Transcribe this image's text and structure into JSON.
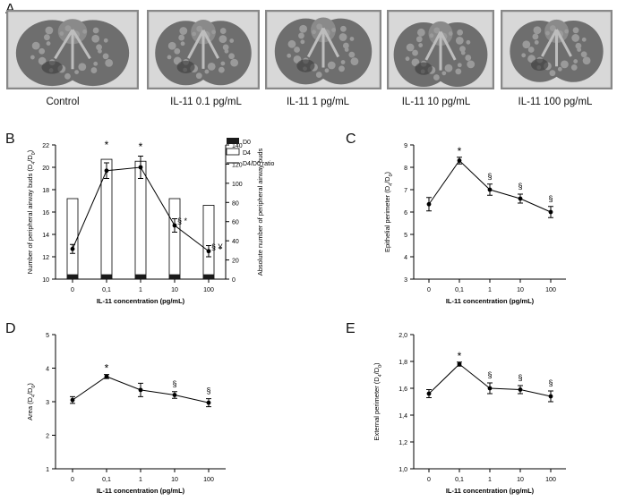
{
  "figure_labels": [
    "A",
    "B",
    "C",
    "D",
    "E"
  ],
  "photos": {
    "captions": [
      "Control",
      "IL-11 0.1 pg/mL",
      "IL-11 1 pg/mL",
      "IL-11 10 pg/mL",
      "IL-11 100 pg/mL"
    ]
  },
  "colors": {
    "axis": "#000000",
    "bar_fill": "#ffffff",
    "d0_fill": "#1a1a1a",
    "photo_frame": "#888888"
  },
  "chart_data": [
    {
      "id": "B",
      "type": "bar",
      "categories": [
        "0",
        "0,1",
        "1",
        "10",
        "100"
      ],
      "xlabel": "IL-11 concentration (pg/mL)",
      "ylabel": "Number of peripheral airway buds (D4/D0)",
      "ylabel_right": "Absolute number of peripheral airway buds",
      "ylim": [
        10,
        22
      ],
      "yticks": [
        "10",
        "12",
        "14",
        "16",
        "18",
        "20",
        "22"
      ],
      "ylim_right": [
        0,
        140
      ],
      "yticks_right": [
        "0",
        "20",
        "40",
        "60",
        "80",
        "100",
        "120",
        "140"
      ],
      "legend": [
        "D0",
        "D4",
        "D4/D0 ratio"
      ],
      "series": [
        {
          "name": "D0",
          "axis": "right",
          "values": [
            5,
            5,
            5,
            5,
            5
          ]
        },
        {
          "name": "D4",
          "axis": "right",
          "values": [
            84,
            125,
            123,
            84,
            77
          ]
        },
        {
          "name": "D4/D0 ratio",
          "axis": "left",
          "values": [
            12.7,
            19.7,
            20.0,
            14.8,
            12.5
          ],
          "errors": [
            0.4,
            0.7,
            1.0,
            0.6,
            0.5
          ]
        }
      ],
      "annotations": [
        {
          "category": "0,1",
          "text": "*"
        },
        {
          "category": "1",
          "text": "*"
        },
        {
          "category": "10",
          "text": "§ *"
        },
        {
          "category": "100",
          "text": "§ ¥"
        }
      ]
    },
    {
      "id": "C",
      "type": "line",
      "categories": [
        "0",
        "0,1",
        "1",
        "10",
        "100"
      ],
      "xlabel": "IL-11 concentration (pg/mL)",
      "ylabel": "Epithelial perimeter (D4/D0)",
      "ylim": [
        3,
        9
      ],
      "yticks": [
        "3",
        "4",
        "5",
        "6",
        "7",
        "8",
        "9"
      ],
      "values": [
        6.35,
        8.3,
        7.0,
        6.6,
        6.0
      ],
      "errors": [
        0.3,
        0.15,
        0.25,
        0.2,
        0.25
      ],
      "annotations": [
        {
          "category": "0,1",
          "text": "*"
        },
        {
          "category": "1",
          "text": "§"
        },
        {
          "category": "10",
          "text": "§"
        },
        {
          "category": "100",
          "text": "§"
        }
      ]
    },
    {
      "id": "D",
      "type": "line",
      "categories": [
        "0",
        "0,1",
        "1",
        "10",
        "100"
      ],
      "xlabel": "IL-11 concentration (pg/mL)",
      "ylabel": "Area (D4/D0)",
      "ylim": [
        1,
        5
      ],
      "yticks": [
        "1",
        "2",
        "3",
        "4",
        "5"
      ],
      "values": [
        3.05,
        3.75,
        3.35,
        3.2,
        2.97
      ],
      "errors": [
        0.1,
        0.06,
        0.2,
        0.1,
        0.12
      ],
      "annotations": [
        {
          "category": "0,1",
          "text": "*"
        },
        {
          "category": "10",
          "text": "§"
        },
        {
          "category": "100",
          "text": "§"
        }
      ]
    },
    {
      "id": "E",
      "type": "line",
      "categories": [
        "0",
        "0,1",
        "1",
        "10",
        "100"
      ],
      "xlabel": "IL-11 concentration (pg/mL)",
      "ylabel": "External perimeter (D4/D0)",
      "ylim": [
        1.0,
        2.0
      ],
      "yticks": [
        "1,0",
        "1,2",
        "1,4",
        "1,6",
        "1,8",
        "2,0"
      ],
      "values": [
        1.56,
        1.78,
        1.6,
        1.59,
        1.54
      ],
      "errors": [
        0.03,
        0.015,
        0.04,
        0.03,
        0.04
      ],
      "annotations": [
        {
          "category": "0,1",
          "text": "*"
        },
        {
          "category": "1",
          "text": "§"
        },
        {
          "category": "10",
          "text": "§"
        },
        {
          "category": "100",
          "text": "§"
        }
      ]
    }
  ]
}
